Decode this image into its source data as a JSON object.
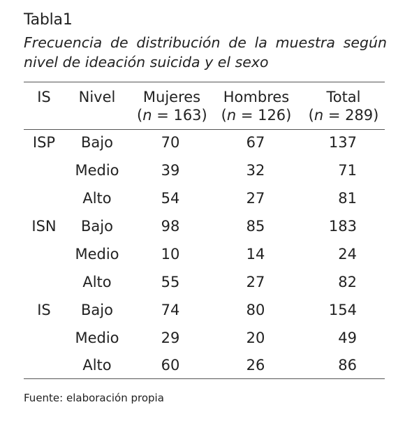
{
  "table_label": "Tabla1",
  "caption": {
    "line1_words": [
      "Frecuencia",
      "de",
      "distribución",
      "de",
      "la",
      "muestra",
      "según"
    ],
    "line2": "nivel de ideación suicida y el sexo"
  },
  "headers": {
    "is": "IS",
    "nivel": "Nivel",
    "mujeres": "Mujeres",
    "mujeres_sub": "(n = 163)",
    "hombres": "Hombres",
    "hombres_sub": "(n = 126)",
    "total": "Total",
    "total_sub": "(n = 289)"
  },
  "rows": [
    {
      "is": "ISP",
      "nivel": "Bajo",
      "mujeres": "70",
      "hombres": "67",
      "total": "137"
    },
    {
      "is": "",
      "nivel": "Medio",
      "mujeres": "39",
      "hombres": "32",
      "total": "71"
    },
    {
      "is": "",
      "nivel": "Alto",
      "mujeres": "54",
      "hombres": "27",
      "total": "81"
    },
    {
      "is": "ISN",
      "nivel": "Bajo",
      "mujeres": "98",
      "hombres": "85",
      "total": "183"
    },
    {
      "is": "",
      "nivel": "Medio",
      "mujeres": "10",
      "hombres": "14",
      "total": "24"
    },
    {
      "is": "",
      "nivel": "Alto",
      "mujeres": "55",
      "hombres": "27",
      "total": "82"
    },
    {
      "is": "IS",
      "nivel": "Bajo",
      "mujeres": "74",
      "hombres": "80",
      "total": "154"
    },
    {
      "is": "",
      "nivel": "Medio",
      "mujeres": "29",
      "hombres": "20",
      "total": "49"
    },
    {
      "is": "",
      "nivel": "Alto",
      "mujeres": "60",
      "hombres": "26",
      "total": "86"
    }
  ],
  "source": "Fuente: elaboración propia"
}
